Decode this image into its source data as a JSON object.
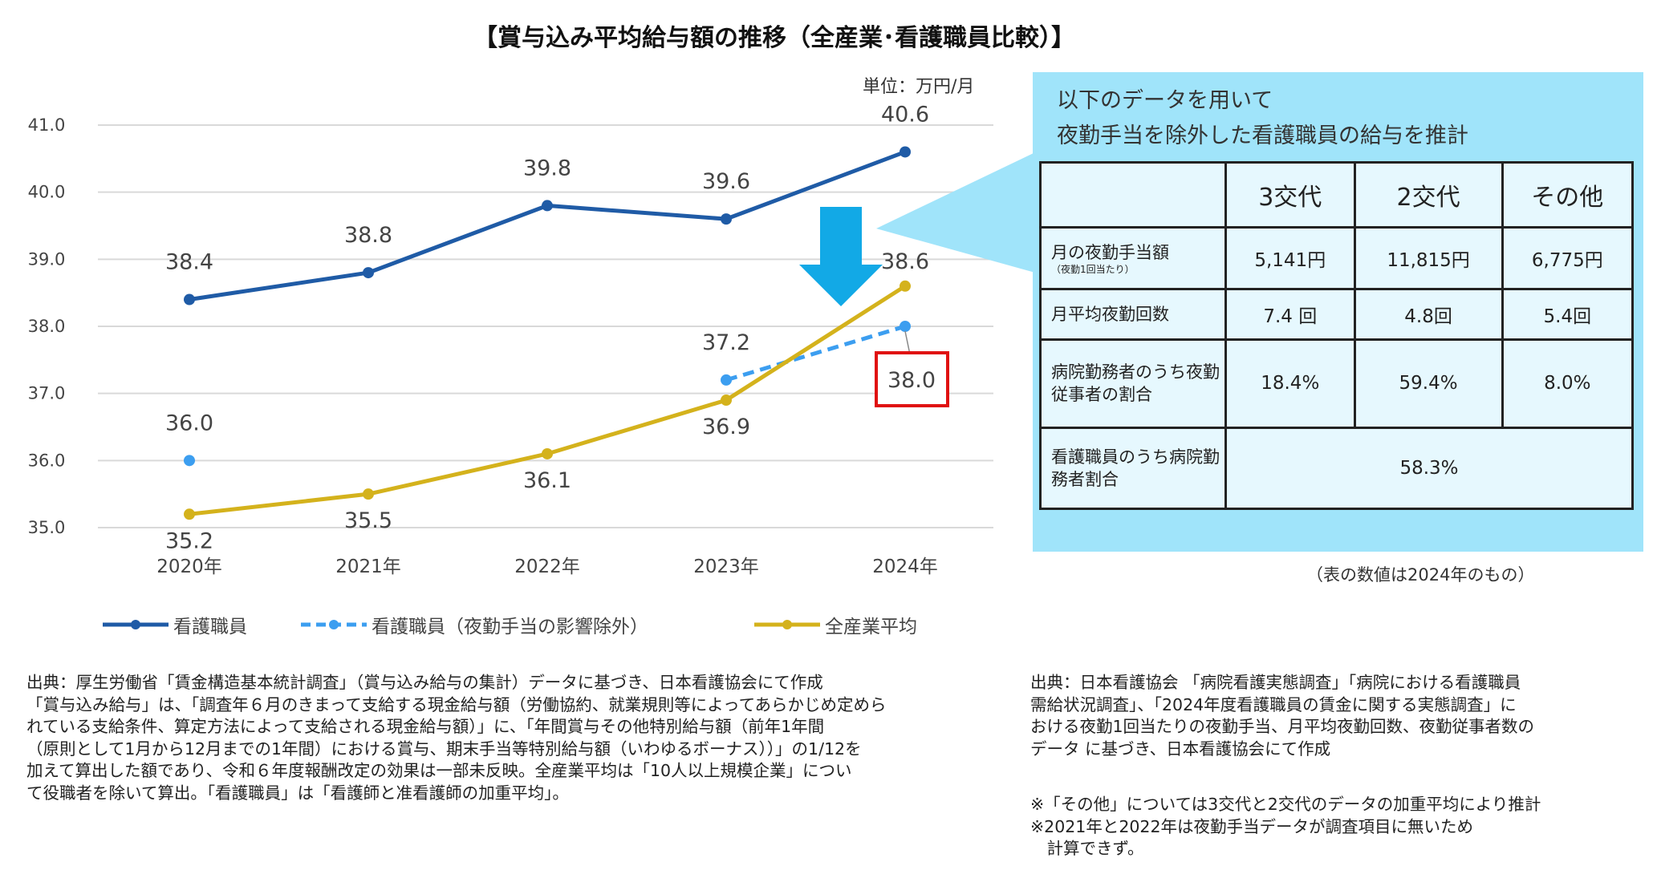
{
  "chart_data": {
    "type": "line",
    "title": "【賞与込み平均給与額の推移（全産業･看護職員比較）】",
    "unit_label": "単位：万円/月",
    "categories": [
      "2020年",
      "2021年",
      "2022年",
      "2023年",
      "2024年"
    ],
    "ylim": [
      35.0,
      41.0
    ],
    "yticks": [
      "35.0",
      "36.0",
      "37.0",
      "38.0",
      "39.0",
      "40.0",
      "41.0"
    ],
    "grid": true,
    "legend_position": "bottom",
    "series": [
      {
        "name": "看護職員",
        "values": [
          38.4,
          38.8,
          39.8,
          39.6,
          40.6
        ],
        "color": "#1f5ba6",
        "style": "solid"
      },
      {
        "name": "看護職員（夜勤手当の影響除外）",
        "values": [
          36.0,
          null,
          null,
          37.2,
          38.0
        ],
        "color": "#3c9ef0",
        "style": "dashed"
      },
      {
        "name": "全産業平均",
        "values": [
          35.2,
          35.5,
          36.1,
          36.9,
          38.6
        ],
        "color": "#d4b21c",
        "style": "solid"
      }
    ],
    "highlight": {
      "label": "38.0",
      "color": "#e01010"
    },
    "arrow_color": "#12a9e6"
  },
  "panel": {
    "title_line1": "以下のデータを用いて",
    "title_line2": "夜勤手当を除外した看護職員の給与を推計",
    "bg_color": "#a0e4fa",
    "headers": [
      "",
      "3交代",
      "2交代",
      "その他"
    ],
    "rows": [
      {
        "label": "月の夜勤手当額",
        "sublabel": "（夜勤1回当たり）",
        "values": [
          "5,141円",
          "11,815円",
          "6,775円"
        ]
      },
      {
        "label": "月平均夜勤回数",
        "values": [
          "7.4 回",
          "4.8回",
          "5.4回"
        ]
      },
      {
        "label": "病院勤務者のうち夜勤従事者の割合",
        "values": [
          "18.4%",
          "59.4%",
          "8.0%"
        ]
      },
      {
        "label": "看護職員のうち病院勤務者割合",
        "values": [
          "58.3%"
        ]
      }
    ],
    "note": "（表の数値は2024年のもの）"
  },
  "footer": {
    "left": "出典：厚生労働省「賃金構造基本統計調査」（賞与込み給与の集計）データに基づき、日本看護協会にて作成\n「賞与込み給与」は、「調査年６月のきまって支給する現金給与額（労働協約、就業規則等によってあらかじめ定めら\nれている支給条件、算定方法によって支給される現金給与額）」に、「年間賞与その他特別給与額（前年1年間\n（原則として1月から12月までの1年間）における賞与、期末手当等特別給与額（いわゆるボーナス））」の1/12を\n加えて算出した額であり、令和６年度報酬改定の効果は一部未反映。全産業平均は「10人以上規模企業」につい\nて役職者を除いて算出。「看護職員」は「看護師と准看護師の加重平均」。",
    "right": "出典：日本看護協会 「病院看護実態調査」「病院における看護職員\n需給状況調査」、「2024年度看護職員の賃金に関する実態調査」に\nおける夜勤1回当たりの夜勤手当、月平均夜勤回数、夜勤従事者数の\nデータ に基づき、日本看護協会にて作成",
    "notes": "※「その他」については3交代と2交代のデータの加重平均により推計\n※2021年と2022年は夜勤手当データが調査項目に無いため\n　計算できず。"
  }
}
